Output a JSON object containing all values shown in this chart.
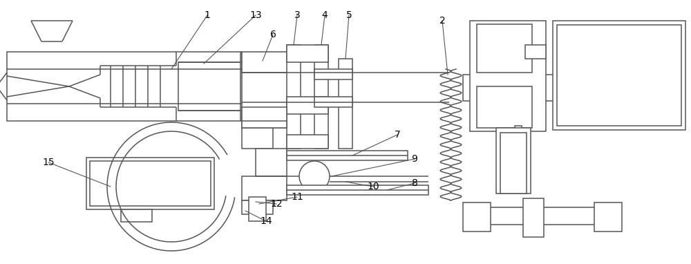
{
  "fig_width": 10.0,
  "fig_height": 3.82,
  "dpi": 100,
  "bg_color": "#ffffff",
  "line_color": "#555555",
  "lw": 1.1
}
